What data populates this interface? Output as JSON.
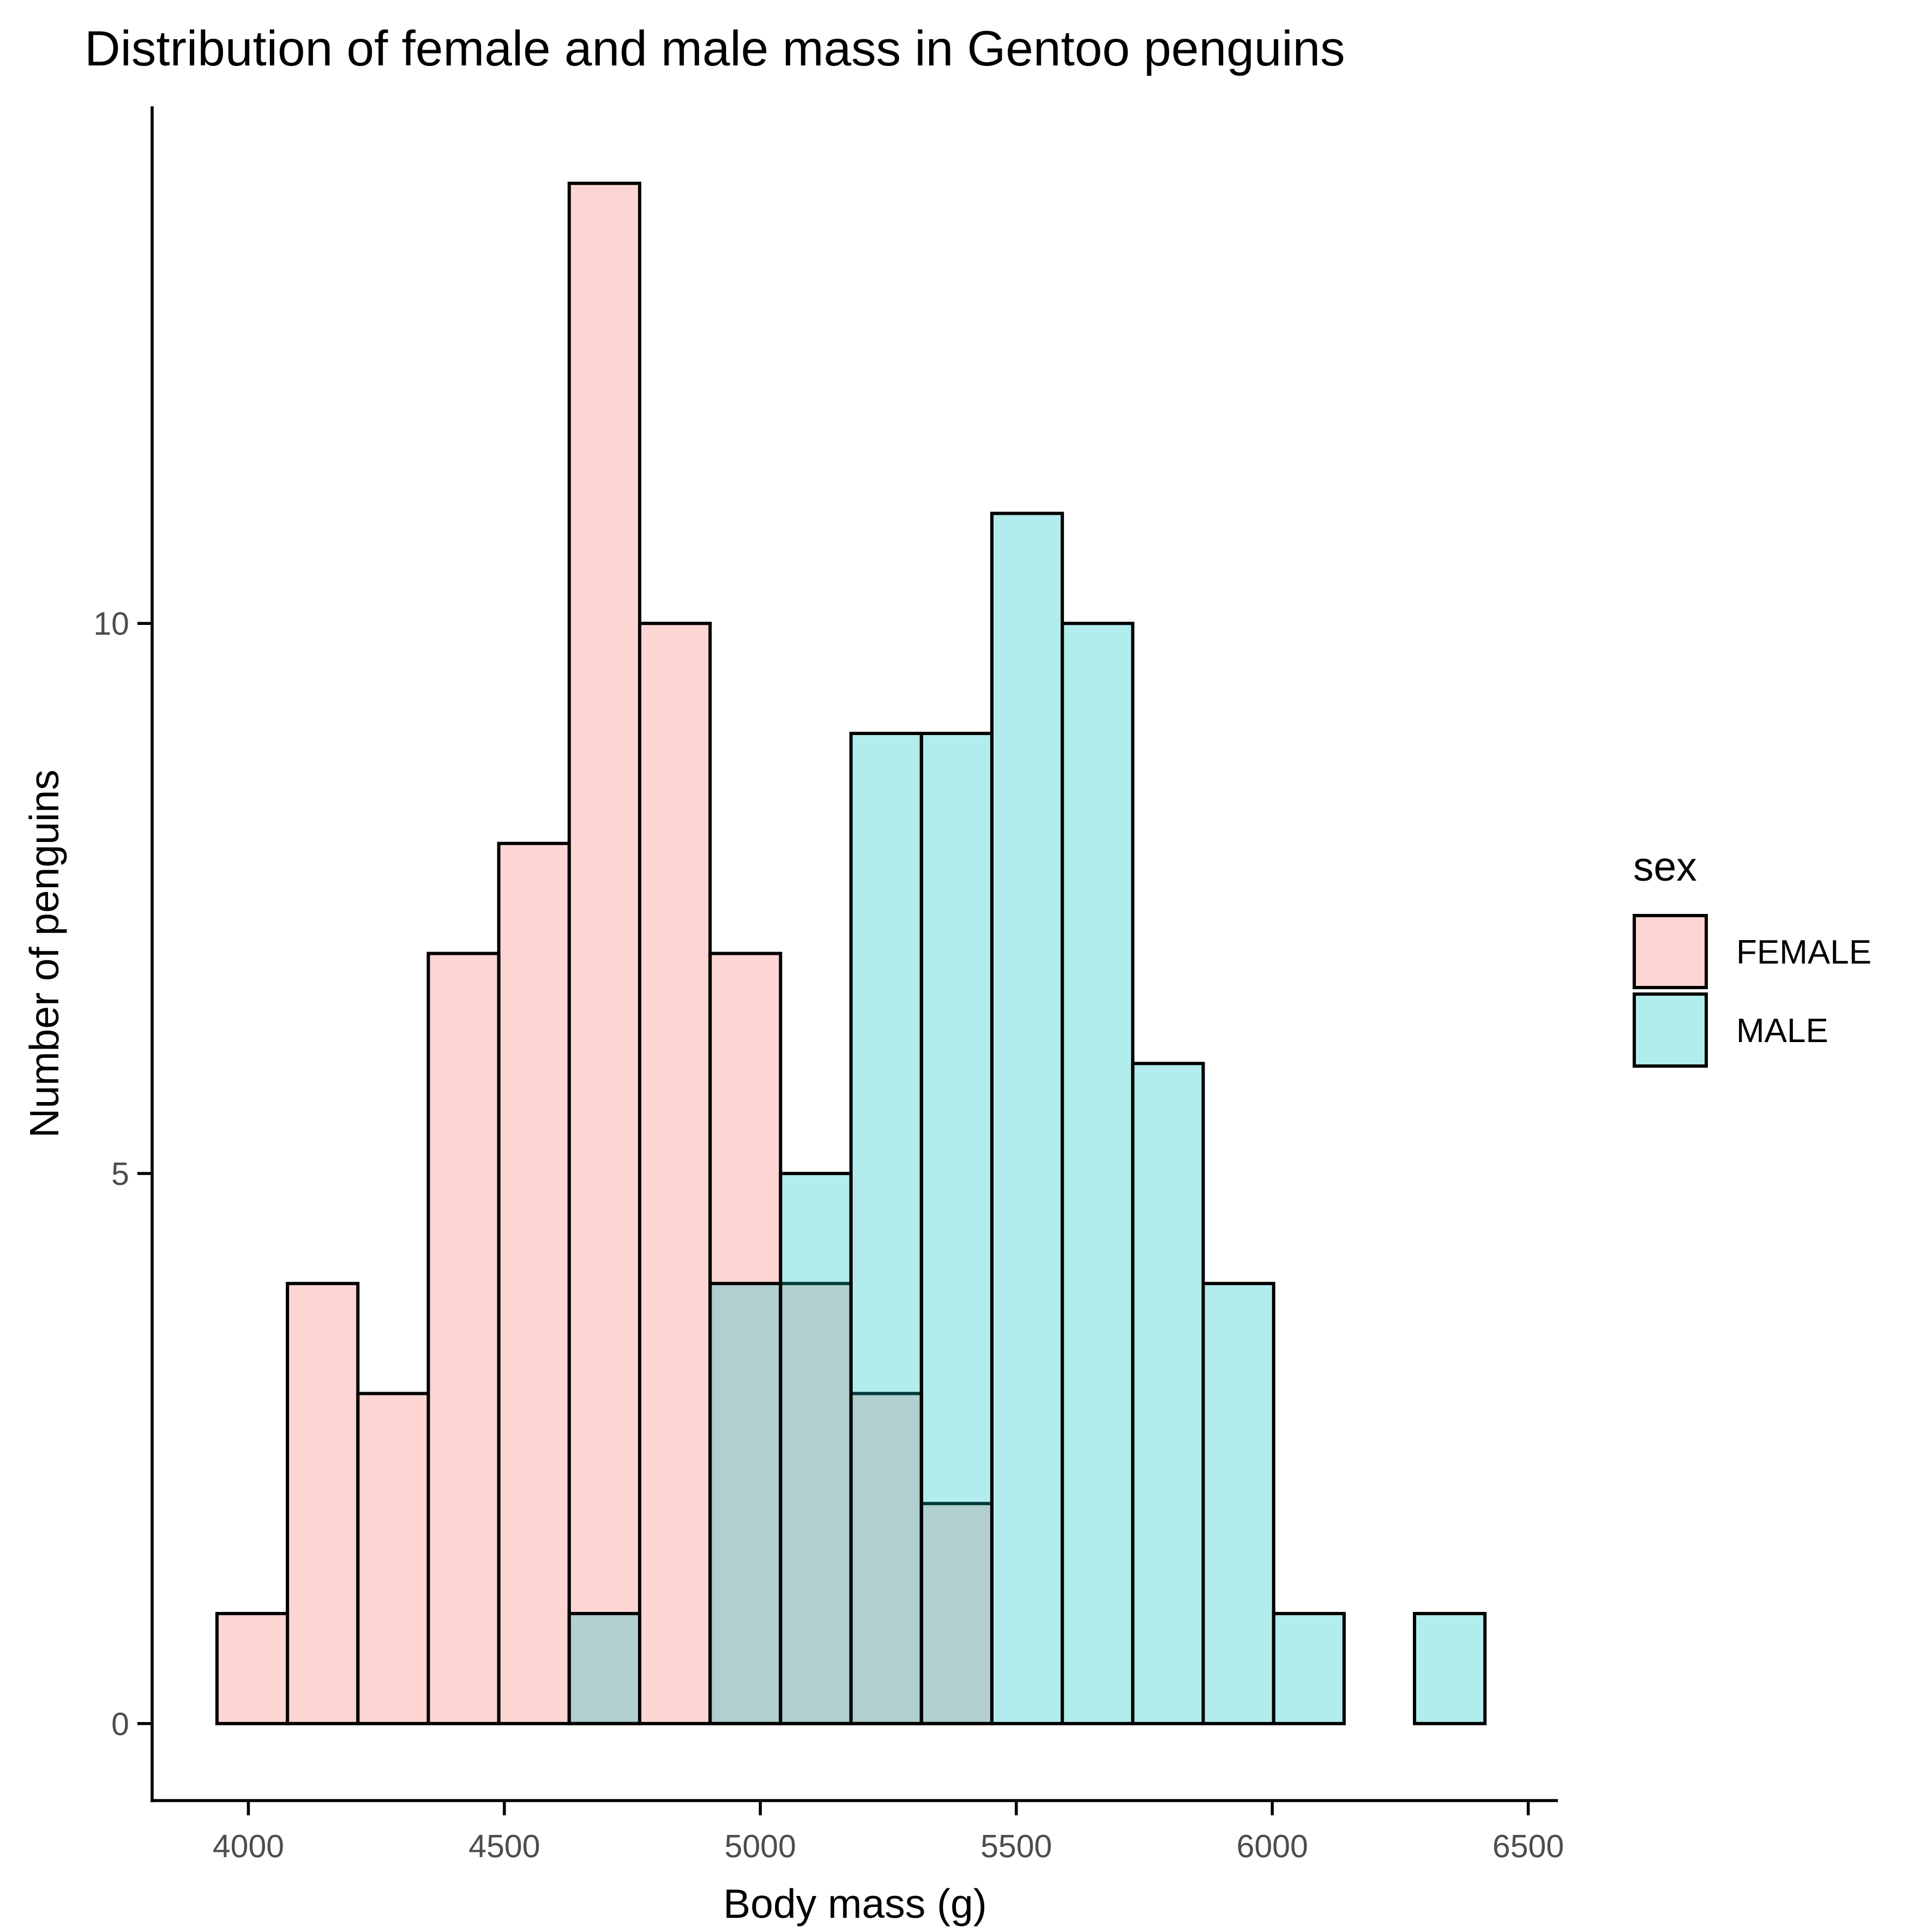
{
  "chart_data": {
    "type": "bar",
    "subtype": "overlapping-histogram",
    "title": "Distribution of female and male mass in Gentoo penguins",
    "xlabel": "Body mass (g)",
    "ylabel": "Number of penguins",
    "xlim": [
      3812,
      6558
    ],
    "ylim": [
      -0.7,
      14.7
    ],
    "x_ticks": [
      4000,
      4500,
      5000,
      5500,
      6000,
      6500
    ],
    "y_ticks": [
      0,
      5,
      10
    ],
    "grid": false,
    "legend": {
      "title": "sex",
      "placement": "right",
      "entries": [
        "FEMALE",
        "MALE"
      ]
    },
    "bin_edges": [
      3938.7,
      4076.3,
      4213.9,
      4351.5,
      4489.1,
      4626.7,
      4764.3,
      4901.9,
      5039.5,
      5177.1,
      5314.7,
      5452.3,
      5589.9,
      5727.5,
      5865.1,
      6002.7,
      6140.3,
      6277.9,
      6415.5
    ],
    "series": [
      {
        "name": "FEMALE",
        "color": "#F8766D",
        "opacity": 0.3,
        "values": [
          1,
          4,
          3,
          7,
          8,
          14,
          10,
          7,
          4,
          3,
          2,
          0,
          0,
          0,
          0,
          0,
          0,
          0
        ]
      },
      {
        "name": "MALE",
        "color": "#00BFC4",
        "opacity": 0.3,
        "values": [
          0,
          0,
          0,
          0,
          0,
          1,
          0,
          4,
          5,
          9,
          9,
          11,
          10,
          6,
          4,
          1,
          0,
          1
        ]
      }
    ]
  }
}
